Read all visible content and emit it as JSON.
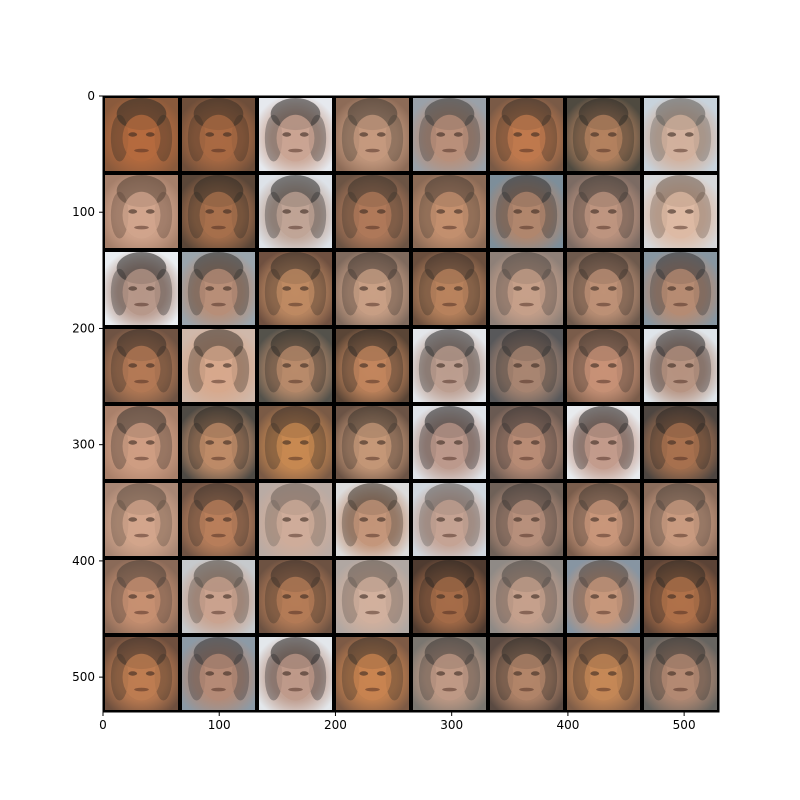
{
  "chart_data": {
    "type": "image-grid",
    "title": "",
    "xlabel": "",
    "ylabel": "",
    "xlim": [
      0,
      530
    ],
    "ylim": [
      530,
      0
    ],
    "x_ticks": [
      0,
      100,
      200,
      300,
      400,
      500
    ],
    "y_ticks": [
      0,
      100,
      200,
      300,
      400,
      500
    ],
    "grid": false,
    "grid_rows": 8,
    "grid_cols": 8,
    "tile_size": 64,
    "tile_border_color": "#000000",
    "tiles": [
      {
        "bg": "#8a5a3c",
        "face": "#b56b3f",
        "hair": "#2f2c26"
      },
      {
        "bg": "#6e4e3a",
        "face": "#a96a43",
        "hair": "#3a2f26"
      },
      {
        "bg": "#e6e9ee",
        "face": "#c9a391",
        "hair": "#2a2a2a"
      },
      {
        "bg": "#8d6b57",
        "face": "#c59a7f",
        "hair": "#433c35"
      },
      {
        "bg": "#9aa1a9",
        "face": "#b98f79",
        "hair": "#3a3a38"
      },
      {
        "bg": "#7a5a46",
        "face": "#c07a4e",
        "hair": "#3b3129"
      },
      {
        "bg": "#4f4a40",
        "face": "#b4825f",
        "hair": "#2b2a26"
      },
      {
        "bg": "#c8d3dc",
        "face": "#d2b09c",
        "hair": "#5d5b58"
      },
      {
        "bg": "#a57f6a",
        "face": "#d2a58d",
        "hair": "#564337"
      },
      {
        "bg": "#5a4638",
        "face": "#a8704c",
        "hair": "#2d2a25"
      },
      {
        "bg": "#dde2e8",
        "face": "#bfa394",
        "hair": "#2a2b2c"
      },
      {
        "bg": "#6c5444",
        "face": "#b0795a",
        "hair": "#3a332c"
      },
      {
        "bg": "#8a6a56",
        "face": "#c4906f",
        "hair": "#463b33"
      },
      {
        "bg": "#7d8e9a",
        "face": "#b2866c",
        "hair": "#2f3133"
      },
      {
        "bg": "#7c6b63",
        "face": "#bf9580",
        "hair": "#3b3633"
      },
      {
        "bg": "#d6d8da",
        "face": "#ddb9a3",
        "hair": "#6b5a4d"
      },
      {
        "bg": "#eaeef2",
        "face": "#b69587",
        "hair": "#252525"
      },
      {
        "bg": "#9aa5ad",
        "face": "#b88e77",
        "hair": "#2e2d2c"
      },
      {
        "bg": "#6f5040",
        "face": "#c08b63",
        "hair": "#3b3129"
      },
      {
        "bg": "#7f6a5d",
        "face": "#caa086",
        "hair": "#3f3731"
      },
      {
        "bg": "#6a4e3d",
        "face": "#b9835d",
        "hair": "#3a3029"
      },
      {
        "bg": "#8e8078",
        "face": "#c7a08a",
        "hair": "#4b4641"
      },
      {
        "bg": "#6e5a4d",
        "face": "#bf9277",
        "hair": "#3a322c"
      },
      {
        "bg": "#8796a1",
        "face": "#b78b72",
        "hair": "#2f3134"
      },
      {
        "bg": "#6f5343",
        "face": "#b47a55",
        "hair": "#362e28"
      },
      {
        "bg": "#cfb8aa",
        "face": "#d7a88c",
        "hair": "#3a3129"
      },
      {
        "bg": "#54524b",
        "face": "#b98b6b",
        "hair": "#2a2926"
      },
      {
        "bg": "#5a4536",
        "face": "#c3865d",
        "hair": "#2b2824"
      },
      {
        "bg": "#e3e6ea",
        "face": "#bb9c8e",
        "hair": "#2c2d2f"
      },
      {
        "bg": "#58585a",
        "face": "#a98672",
        "hair": "#2f3032"
      },
      {
        "bg": "#7a5c4a",
        "face": "#c89277",
        "hair": "#3b332e"
      },
      {
        "bg": "#dfe5ea",
        "face": "#b5917f",
        "hair": "#2b2c2d"
      },
      {
        "bg": "#a9806a",
        "face": "#cf9e83",
        "hair": "#3b342f"
      },
      {
        "bg": "#4e4a44",
        "face": "#c08c68",
        "hair": "#2a2825"
      },
      {
        "bg": "#7a5a45",
        "face": "#c88952",
        "hair": "#3a3029"
      },
      {
        "bg": "#6b5345",
        "face": "#c69878",
        "hair": "#3d342d"
      },
      {
        "bg": "#dfe3e8",
        "face": "#bb9789",
        "hair": "#252628"
      },
      {
        "bg": "#6a5a52",
        "face": "#b98c76",
        "hair": "#343231"
      },
      {
        "bg": "#e8ebee",
        "face": "#c1998a",
        "hair": "#242424"
      },
      {
        "bg": "#4d4540",
        "face": "#a9724f",
        "hair": "#2a2724"
      },
      {
        "bg": "#a88674",
        "face": "#d3a68c",
        "hair": "#5a4b40"
      },
      {
        "bg": "#6f5344",
        "face": "#b97f5b",
        "hair": "#3a322b"
      },
      {
        "bg": "#b9aba4",
        "face": "#cfac9a",
        "hair": "#6b6059"
      },
      {
        "bg": "#dcdcdc",
        "face": "#c39478",
        "hair": "#3b332c"
      },
      {
        "bg": "#d0d7de",
        "face": "#c4a192",
        "hair": "#5d5a57"
      },
      {
        "bg": "#6f6158",
        "face": "#b8907c",
        "hair": "#3b3735"
      },
      {
        "bg": "#7a5d4c",
        "face": "#c9977b",
        "hair": "#433a33"
      },
      {
        "bg": "#8a6c5b",
        "face": "#c99b80",
        "hair": "#4a423b"
      },
      {
        "bg": "#8a6a58",
        "face": "#c79071",
        "hair": "#4a4038"
      },
      {
        "bg": "#c6c9cc",
        "face": "#c9a18d",
        "hair": "#4d4843"
      },
      {
        "bg": "#6d5242",
        "face": "#b57c57",
        "hair": "#3a3029"
      },
      {
        "bg": "#b0a7a2",
        "face": "#d2b09d",
        "hair": "#5e554f"
      },
      {
        "bg": "#4f3b30",
        "face": "#a66c48",
        "hair": "#2b2622"
      },
      {
        "bg": "#8f8a86",
        "face": "#c6a08c",
        "hair": "#4c4845"
      },
      {
        "bg": "#8795a2",
        "face": "#c7977b",
        "hair": "#4a433e"
      },
      {
        "bg": "#5b4336",
        "face": "#b0714a",
        "hair": "#2f2924"
      },
      {
        "bg": "#6e4f3e",
        "face": "#bf7d52",
        "hair": "#3a3029"
      },
      {
        "bg": "#8c9aa6",
        "face": "#b58a75",
        "hair": "#343537"
      },
      {
        "bg": "#e3e7eb",
        "face": "#bd9888",
        "hair": "#262627"
      },
      {
        "bg": "#7d5a45",
        "face": "#c98450",
        "hair": "#3d332b"
      },
      {
        "bg": "#7a7670",
        "face": "#c09a85",
        "hair": "#3c3937"
      },
      {
        "bg": "#5a4a42",
        "face": "#b38569",
        "hair": "#2e2b28"
      },
      {
        "bg": "#7f5d48",
        "face": "#c68857",
        "hair": "#3c322b"
      },
      {
        "bg": "#666460",
        "face": "#b48a73",
        "hair": "#343331"
      }
    ]
  }
}
